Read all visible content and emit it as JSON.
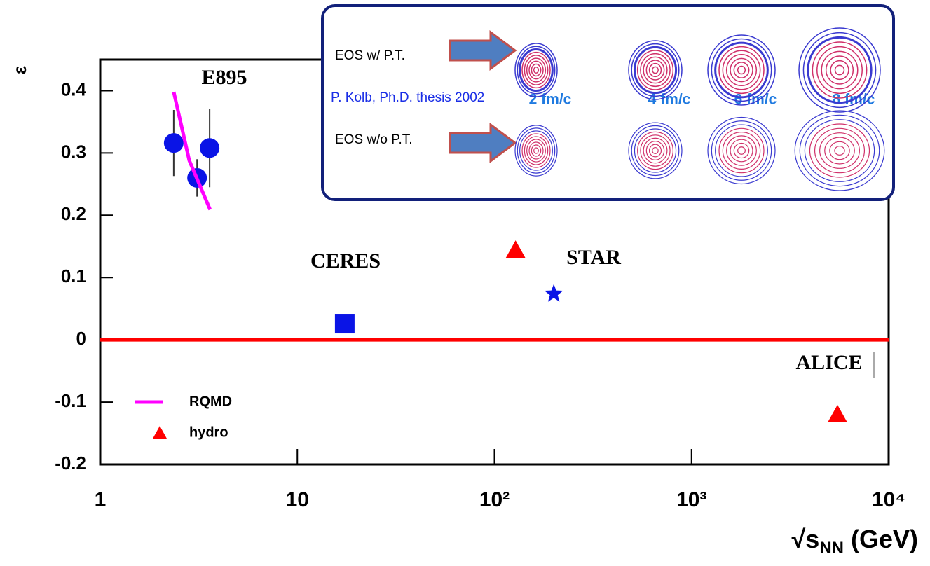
{
  "chart_data": {
    "type": "scatter",
    "y_label": "ε",
    "x_label": {
      "base": "√s",
      "sub": "NN",
      "unit": "(GeV)"
    },
    "xlim": [
      1,
      10000
    ],
    "xscale": "log",
    "xticks": [
      1,
      10,
      {
        "value": 100,
        "label": "10²"
      },
      {
        "value": 1000,
        "label": "10³"
      },
      {
        "value": 10000,
        "label": "10⁴"
      }
    ],
    "ylim": [
      -0.2,
      0.45
    ],
    "yticks": [
      -0.2,
      -0.1,
      0,
      0.1,
      0.2,
      0.3,
      0.4
    ],
    "series": [
      {
        "name": "E895",
        "kind": "circle",
        "color": "#0a14e6",
        "x": [
          2.36,
          3.1,
          3.59
        ],
        "values": [
          0.316,
          0.26,
          0.308
        ],
        "errors": [
          0.053,
          0.03,
          0.063
        ]
      },
      {
        "name": "RQMD",
        "kind": "line",
        "color": "#ff00ff",
        "x": [
          2.36,
          2.83,
          3.61
        ],
        "values": [
          0.398,
          0.288,
          0.209
        ]
      },
      {
        "name": "CERES",
        "kind": "square",
        "color": "#0a14e6",
        "x": [
          17.4
        ],
        "values": [
          0.026
        ]
      },
      {
        "name": "STAR",
        "kind": "star",
        "color": "#0a14e6",
        "x": [
          200
        ],
        "values": [
          0.074
        ]
      },
      {
        "name": "hydro",
        "kind": "triangle",
        "color": "#ff0000",
        "x": [
          128,
          5500
        ],
        "values": [
          0.144,
          -0.12
        ]
      }
    ],
    "legend": [
      "RQMD",
      "hydro"
    ],
    "annotations": [
      "E895",
      "CERES",
      "STAR",
      "ALICE"
    ],
    "zero_line_color": "#ff0000",
    "inset": {
      "row_labels": [
        "EOS w/ P.T.",
        "EOS w/o P.T."
      ],
      "credit": "P. Kolb, Ph.D. thesis 2002",
      "times": [
        "2 fm/c",
        "4 fm/c",
        "6 fm/c",
        "8 fm/c"
      ]
    }
  }
}
